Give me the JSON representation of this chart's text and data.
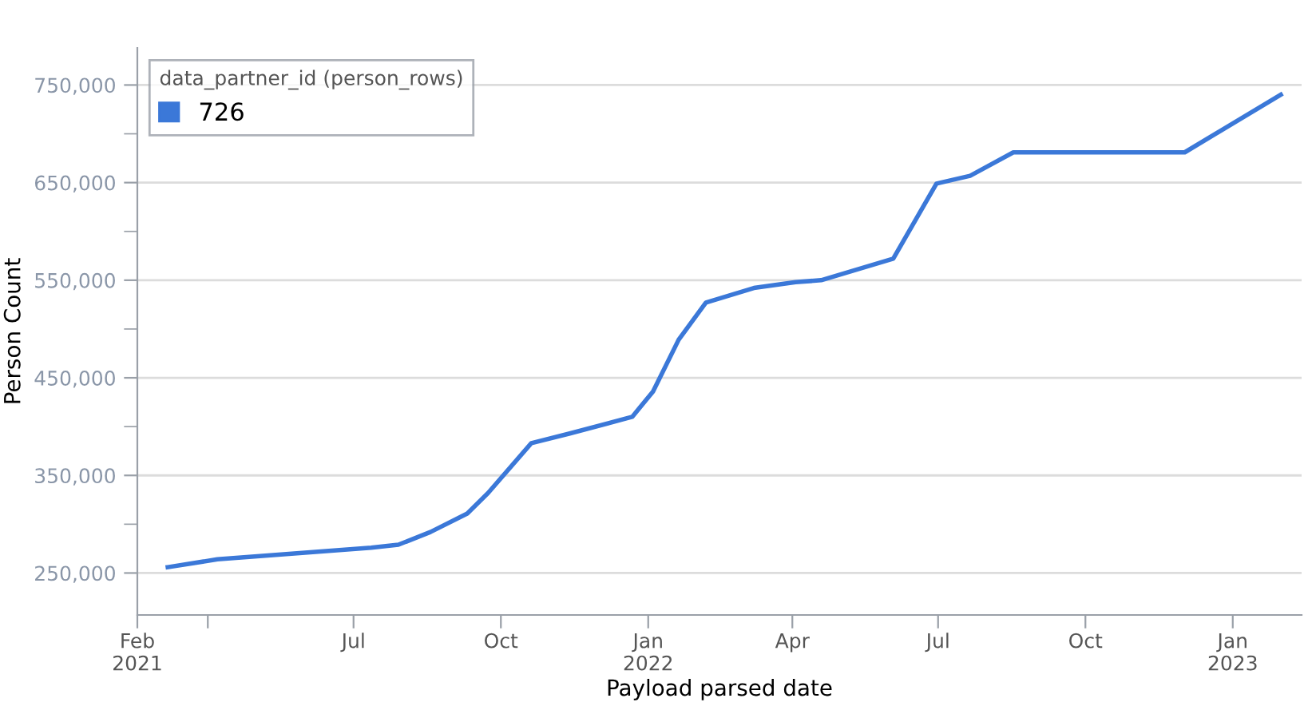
{
  "chart_data": {
    "type": "line",
    "xlabel": "Payload parsed date",
    "ylabel": "Person Count",
    "legend_title": "data_partner_id (person_rows)",
    "legend": "top left",
    "grid": "y",
    "marker": "none",
    "line_style": "solid",
    "x": [
      "2021-03-07",
      "2021-04-07",
      "2021-07-12",
      "2021-07-29",
      "2021-08-18",
      "2021-09-10",
      "2021-09-23",
      "2021-10-20",
      "2021-11-13",
      "2021-12-22",
      "2022-01-04",
      "2022-01-20",
      "2022-02-06",
      "2022-03-08",
      "2022-04-03",
      "2022-04-19",
      "2022-06-03",
      "2022-06-17",
      "2022-06-30",
      "2022-07-21",
      "2022-08-17",
      "2022-12-02",
      "2023-01-31"
    ],
    "series": [
      {
        "name": "726",
        "color": "#3b78d8",
        "values": [
          256000,
          264000,
          276000,
          279000,
          292000,
          311000,
          332000,
          383000,
          393000,
          410000,
          436000,
          489000,
          527000,
          542000,
          548000,
          550000,
          572000,
          612000,
          649000,
          657000,
          681000,
          681000,
          740000
        ]
      }
    ],
    "xlim": [
      "2021-02-16",
      "2023-02-13"
    ],
    "xticks": [
      {
        "value": "2021-02-16",
        "label": "Feb\n2021"
      },
      {
        "value": "2021-04-01",
        "label": null
      },
      {
        "value": "2021-07-01",
        "label": "Jul"
      },
      {
        "value": "2021-10-01",
        "label": "Oct"
      },
      {
        "value": "2022-01-01",
        "label": "Jan\n2022"
      },
      {
        "value": "2022-04-01",
        "label": "Apr"
      },
      {
        "value": "2022-07-01",
        "label": "Jul"
      },
      {
        "value": "2022-10-01",
        "label": "Oct"
      },
      {
        "value": "2023-01-01",
        "label": "Jan\n2023"
      }
    ],
    "ylim": [
      207000,
      788000
    ],
    "yticks": [
      {
        "value": 250000,
        "label": "250,000"
      },
      {
        "value": 300000,
        "label": null
      },
      {
        "value": 350000,
        "label": "350,000"
      },
      {
        "value": 400000,
        "label": null
      },
      {
        "value": 450000,
        "label": "450,000"
      },
      {
        "value": 500000,
        "label": null
      },
      {
        "value": 550000,
        "label": "550,000"
      },
      {
        "value": 600000,
        "label": null
      },
      {
        "value": 650000,
        "label": "650,000"
      },
      {
        "value": 700000,
        "label": null
      },
      {
        "value": 750000,
        "label": "750,000"
      }
    ]
  }
}
